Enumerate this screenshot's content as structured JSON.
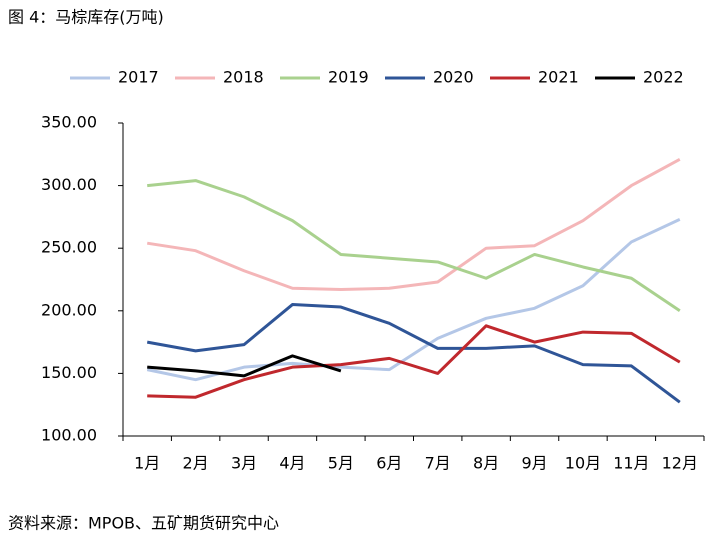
{
  "chart_data": {
    "type": "line",
    "title": "图 4：马棕库存(万吨)",
    "source": "资料来源：MPOB、五矿期货研究中心",
    "categories": [
      "1月",
      "2月",
      "3月",
      "4月",
      "5月",
      "6月",
      "7月",
      "8月",
      "9月",
      "10月",
      "11月",
      "12月"
    ],
    "series": [
      {
        "name": "2017",
        "color": "#b4c7e7",
        "values": [
          153,
          145,
          155,
          158,
          155,
          153,
          178,
          194,
          202,
          220,
          255,
          273
        ]
      },
      {
        "name": "2018",
        "color": "#f4b6b8",
        "values": [
          254,
          248,
          232,
          218,
          217,
          218,
          223,
          250,
          252,
          272,
          300,
          321
        ]
      },
      {
        "name": "2019",
        "color": "#a9d18e",
        "values": [
          300,
          304,
          291,
          272,
          245,
          242,
          239,
          226,
          245,
          235,
          226,
          200
        ]
      },
      {
        "name": "2020",
        "color": "#2f5597",
        "values": [
          175,
          168,
          173,
          205,
          203,
          190,
          170,
          170,
          172,
          157,
          156,
          127
        ]
      },
      {
        "name": "2021",
        "color": "#c0282d",
        "values": [
          132,
          131,
          145,
          155,
          157,
          162,
          150,
          188,
          175,
          183,
          182,
          159
        ]
      },
      {
        "name": "2022",
        "color": "#000000",
        "values": [
          155,
          152,
          148,
          164,
          152,
          null,
          null,
          null,
          null,
          null,
          null,
          null
        ]
      }
    ],
    "ylim": [
      100,
      350
    ],
    "yticks": [
      {
        "value": 100,
        "label": "100.00"
      },
      {
        "value": 150,
        "label": "150.00"
      },
      {
        "value": 200,
        "label": "200.00"
      },
      {
        "value": 250,
        "label": "250.00"
      },
      {
        "value": 300,
        "label": "300.00"
      },
      {
        "value": 350,
        "label": "350.00"
      }
    ],
    "legend": "top",
    "grid": false
  }
}
